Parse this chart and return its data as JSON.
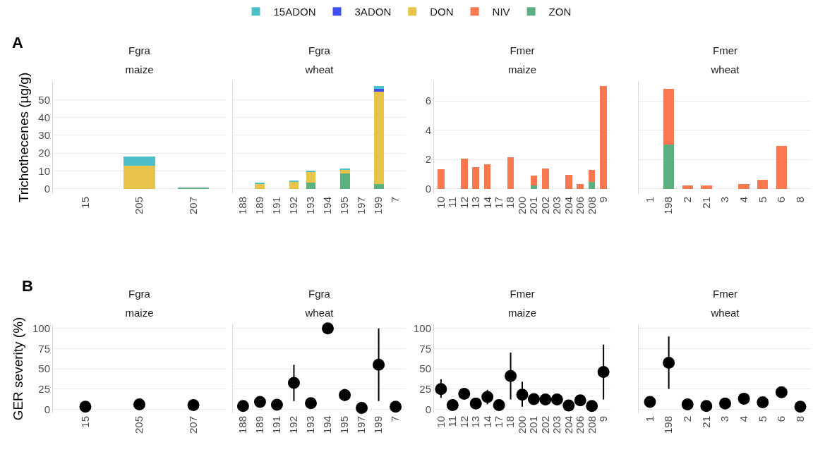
{
  "chart_data": [
    {
      "type": "bar",
      "title": "Fgra",
      "subtitle": "maize",
      "ylabel": "Trichothecenes (µg/g)",
      "annotations": [
        "A"
      ],
      "categories": [
        "15",
        "205",
        "207"
      ],
      "stacked": true,
      "legend": "top",
      "grid": "y",
      "ylim": [
        -2.9,
        60.4
      ],
      "yticks": [
        0,
        10,
        20,
        30,
        40,
        50
      ],
      "series": [
        {
          "name": "ZON",
          "color": "#5cb07f",
          "values": [
            0,
            0,
            0.5
          ]
        },
        {
          "name": "NIV",
          "color": "#f97850",
          "values": [
            0,
            0,
            0
          ]
        },
        {
          "name": "DON",
          "color": "#e8c34a",
          "values": [
            0,
            13,
            0
          ]
        },
        {
          "name": "3ADON",
          "color": "#4050f0",
          "values": [
            0,
            0,
            0
          ]
        },
        {
          "name": "15ADON",
          "color": "#4dbfc8",
          "values": [
            0,
            5,
            0
          ]
        }
      ]
    },
    {
      "type": "bar",
      "title": "Fgra",
      "subtitle": "wheat",
      "categories": [
        "188",
        "189",
        "191",
        "192",
        "193",
        "194",
        "195",
        "197",
        "199",
        "7"
      ],
      "stacked": true,
      "grid": "y",
      "tick_labels": "x",
      "ylim": [
        -2.9,
        60.4
      ],
      "yticks": [
        0,
        10,
        20,
        30,
        40,
        50
      ],
      "series": [
        {
          "color": "#5cb07f",
          "values": [
            0,
            0,
            0,
            0,
            3.5,
            0,
            8.5,
            0,
            2.5,
            0
          ]
        },
        {
          "color": "#e8c34a",
          "values": [
            0,
            2.8,
            0,
            3.7,
            6,
            0,
            2.2,
            0,
            52,
            0
          ]
        },
        {
          "color": "#4050f0",
          "values": [
            0,
            0,
            0,
            0,
            0,
            0,
            0,
            0,
            1.5,
            0
          ]
        },
        {
          "color": "#4dbfc8",
          "values": [
            0,
            0.5,
            0,
            1,
            0.5,
            0,
            0.7,
            0,
            1.5,
            0
          ]
        }
      ]
    },
    {
      "type": "bar",
      "title": "Fmer",
      "subtitle": "maize",
      "categories": [
        "10",
        "11",
        "12",
        "13",
        "14",
        "17",
        "18",
        "200",
        "201",
        "202",
        "203",
        "204",
        "206",
        "208",
        "9"
      ],
      "stacked": true,
      "grid": "y",
      "ylim": [
        -0.35,
        7.35
      ],
      "yticks": [
        0,
        2,
        4,
        6
      ],
      "series": [
        {
          "color": "#5cb07f",
          "values": [
            0,
            0,
            0,
            0,
            0,
            0,
            0,
            0,
            0.25,
            0,
            0,
            0,
            0,
            0.45,
            0
          ]
        },
        {
          "color": "#f97850",
          "values": [
            1.35,
            0,
            2.05,
            1.5,
            1.65,
            0,
            2.15,
            0,
            0.65,
            1.4,
            0,
            0.95,
            0.3,
            0.85,
            7.0
          ]
        }
      ]
    },
    {
      "type": "bar",
      "title": "Fmer",
      "subtitle": "wheat",
      "categories": [
        "1",
        "198",
        "2",
        "21",
        "3",
        "4",
        "5",
        "6",
        "8"
      ],
      "stacked": true,
      "grid": "y",
      "tick_labels": "x",
      "ylim": [
        -0.35,
        7.35
      ],
      "yticks": [
        0,
        2,
        4,
        6
      ],
      "series": [
        {
          "color": "#5cb07f",
          "values": [
            0,
            3.0,
            0,
            0,
            0,
            0,
            0,
            0,
            0
          ]
        },
        {
          "color": "#f97850",
          "values": [
            0,
            3.8,
            0.25,
            0.25,
            0,
            0.3,
            0.6,
            2.9,
            0
          ]
        }
      ]
    },
    {
      "type": "scatter",
      "title": "Fgra",
      "subtitle": "maize",
      "ylabel": "GER severity (%)",
      "annotations": [
        "B"
      ],
      "categories": [
        "15",
        "205",
        "207"
      ],
      "grid": "y",
      "marker": "circle",
      "color": "#000000",
      "ylim": [
        -5,
        105
      ],
      "yticks": [
        0,
        25,
        50,
        75,
        100
      ],
      "values": [
        3,
        6,
        5
      ]
    },
    {
      "type": "scatter",
      "title": "Fgra",
      "subtitle": "wheat",
      "categories": [
        "188",
        "189",
        "191",
        "192",
        "193",
        "194",
        "195",
        "197",
        "199",
        "7"
      ],
      "grid": "y",
      "tick_labels": "x",
      "marker": "circle",
      "color": "#000000",
      "ylim": [
        -5,
        105
      ],
      "yticks": [
        0,
        25,
        50,
        75,
        100
      ],
      "values": [
        4,
        9,
        5.5,
        32.5,
        7.5,
        100,
        17.5,
        1.5,
        55,
        3
      ],
      "errors": [
        null,
        null,
        null,
        [
          10,
          55
        ],
        null,
        null,
        [
          10,
          25
        ],
        null,
        [
          10,
          100
        ],
        null
      ]
    },
    {
      "type": "scatter",
      "title": "Fmer",
      "subtitle": "maize",
      "categories": [
        "10",
        "11",
        "12",
        "13",
        "14",
        "17",
        "18",
        "200",
        "201",
        "202",
        "203",
        "204",
        "206",
        "208",
        "9"
      ],
      "grid": "y",
      "marker": "circle",
      "color": "#000000",
      "ylim": [
        -5,
        105
      ],
      "yticks": [
        0,
        25,
        50,
        75,
        100
      ],
      "values": [
        25,
        5,
        19,
        7,
        15,
        5,
        41,
        18,
        12.5,
        12,
        12,
        4.5,
        11,
        4,
        46
      ],
      "errors": [
        [
          14,
          37
        ],
        null,
        null,
        null,
        [
          6,
          24
        ],
        null,
        [
          12,
          70
        ],
        [
          3,
          34
        ],
        null,
        null,
        null,
        null,
        null,
        null,
        [
          12,
          80
        ]
      ]
    },
    {
      "type": "scatter",
      "title": "Fmer",
      "subtitle": "wheat",
      "categories": [
        "1",
        "198",
        "2",
        "21",
        "3",
        "4",
        "5",
        "6",
        "8"
      ],
      "grid": "y",
      "tick_labels": "x",
      "marker": "circle",
      "color": "#000000",
      "ylim": [
        -5,
        105
      ],
      "yticks": [
        0,
        25,
        50,
        75,
        100
      ],
      "values": [
        9,
        57.5,
        6,
        4,
        7,
        13,
        8.5,
        21,
        3
      ],
      "errors": [
        null,
        [
          25,
          90
        ],
        null,
        null,
        null,
        [
          6,
          19
        ],
        [
          3,
          14
        ],
        [
          15,
          27
        ],
        null
      ]
    }
  ]
}
